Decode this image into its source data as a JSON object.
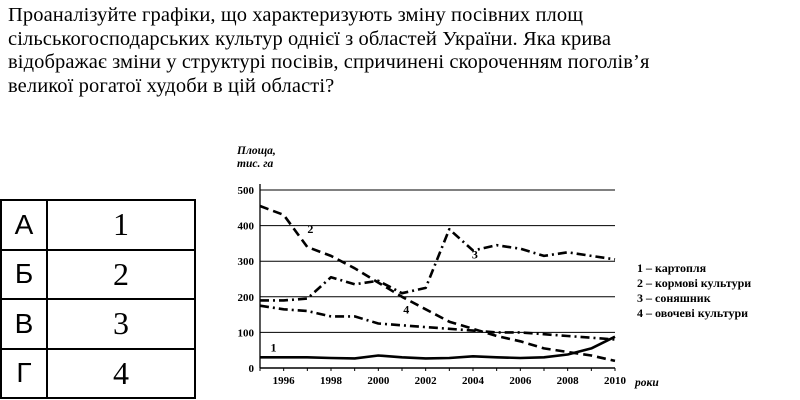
{
  "question": {
    "lines": [
      "Проаналізуйте графіки, що характеризують зміну посівних площ",
      "сільськогосподарських культур однієї з областей України. Яка крива",
      "відображає зміни у структурі посівів, спричинені скороченням поголів’я",
      "великої рогатої худоби в цій області?"
    ]
  },
  "answers": [
    {
      "letter": "А",
      "value": "1"
    },
    {
      "letter": "Б",
      "value": "2"
    },
    {
      "letter": "В",
      "value": "3"
    },
    {
      "letter": "Г",
      "value": "4"
    }
  ],
  "chart_data": {
    "type": "line",
    "ylabel_line1": "Площа,",
    "ylabel_line2": "тис. га",
    "xlabel": "роки",
    "ylim": [
      0,
      500
    ],
    "xlim": [
      1995,
      2010
    ],
    "yticks": [
      "500",
      "400",
      "300",
      "200",
      "100",
      "0"
    ],
    "xticks": [
      "1996",
      "1998",
      "2000",
      "2002",
      "2004",
      "2006",
      "2008",
      "2010"
    ],
    "series": [
      {
        "id": "1",
        "name": "картопля",
        "style": "solid",
        "x": [
          1995,
          1996,
          1997,
          1998,
          1999,
          2000,
          2001,
          2002,
          2003,
          2004,
          2005,
          2006,
          2007,
          2008,
          2009,
          2010
        ],
        "values": [
          30,
          30,
          30,
          28,
          27,
          35,
          30,
          27,
          28,
          33,
          30,
          28,
          30,
          38,
          55,
          88
        ]
      },
      {
        "id": "2",
        "name": "кормові культури",
        "style": "dashed",
        "x": [
          1995,
          1996,
          1997,
          1998,
          1999,
          2000,
          2001,
          2002,
          2003,
          2004,
          2005,
          2006,
          2007,
          2008,
          2009,
          2010
        ],
        "values": [
          455,
          430,
          340,
          315,
          280,
          240,
          200,
          165,
          130,
          110,
          90,
          75,
          55,
          45,
          35,
          20
        ]
      },
      {
        "id": "3",
        "name": "соняшник",
        "style": "dashdot",
        "x": [
          1995,
          1996,
          1997,
          1998,
          1999,
          2000,
          2001,
          2002,
          2003,
          2004,
          2005,
          2006,
          2007,
          2008,
          2009,
          2010
        ],
        "values": [
          190,
          190,
          195,
          255,
          235,
          245,
          210,
          225,
          390,
          330,
          345,
          335,
          315,
          325,
          315,
          305
        ]
      },
      {
        "id": "4",
        "name": "овочеві культури",
        "style": "dashdot",
        "x": [
          1995,
          1996,
          1997,
          1998,
          1999,
          2000,
          2001,
          2002,
          2003,
          2004,
          2005,
          2006,
          2007,
          2008,
          2009,
          2010
        ],
        "values": [
          175,
          165,
          160,
          145,
          145,
          125,
          120,
          115,
          110,
          105,
          100,
          100,
          95,
          90,
          85,
          80
        ]
      }
    ],
    "legend": [
      "1 – картопля",
      "2 – кормові культури",
      "3 – соняшник",
      "4 – овочеві культури"
    ]
  }
}
